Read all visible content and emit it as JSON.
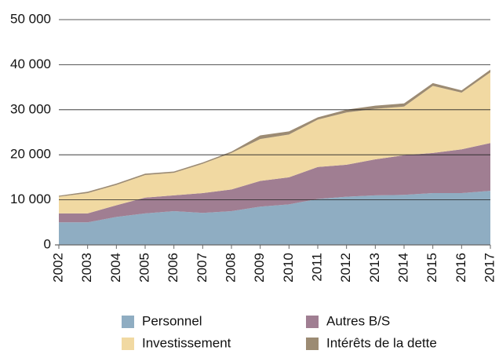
{
  "chart_data": {
    "type": "stacked_area",
    "categories": [
      "2002",
      "2003",
      "2004",
      "2005",
      "2006",
      "2007",
      "2008",
      "2009",
      "2010",
      "2011",
      "2012",
      "2013",
      "2014",
      "2015",
      "2016",
      "2017"
    ],
    "series": [
      {
        "name": "Personnel",
        "color": "#8fadc2",
        "values": [
          5000,
          5000,
          6200,
          7000,
          7500,
          7100,
          7500,
          8500,
          9000,
          10200,
          10700,
          11000,
          11100,
          11500,
          11500,
          12000
        ]
      },
      {
        "name": "Autres B/S",
        "color": "#a07e92",
        "values": [
          2000,
          2000,
          2600,
          3500,
          3500,
          4400,
          4800,
          5700,
          6000,
          7100,
          7100,
          8000,
          8800,
          8900,
          9700,
          10600
        ]
      },
      {
        "name": "Investissement",
        "color": "#f1d9a2",
        "values": [
          3700,
          4500,
          4500,
          5000,
          5000,
          6500,
          8100,
          9300,
          9500,
          10500,
          11600,
          11200,
          10800,
          14900,
          12600,
          15700
        ]
      },
      {
        "name": "Intérêts de la dette",
        "color": "#9c8b73",
        "values": [
          200,
          300,
          300,
          300,
          300,
          300,
          300,
          800,
          700,
          500,
          600,
          700,
          700,
          600,
          500,
          600
        ]
      }
    ],
    "ylim": [
      0,
      50000
    ],
    "yticks": [
      0,
      {
        "value": 10000,
        "label": "10 000"
      },
      {
        "value": 20000,
        "label": "20 000"
      },
      {
        "value": 30000,
        "label": "30 000"
      },
      {
        "value": 40000,
        "label": "40 000"
      },
      {
        "value": 50000,
        "label": "50 000"
      }
    ],
    "grid": true,
    "legend": "bottom"
  }
}
